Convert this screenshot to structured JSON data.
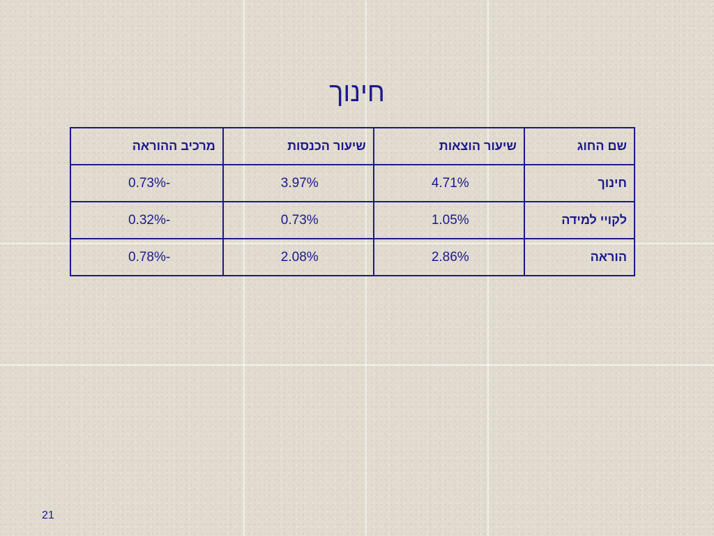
{
  "slide": {
    "title": "חינוך",
    "page_number": "21"
  },
  "table": {
    "headers": [
      "שם החוג",
      "שיעור הוצאות",
      "שיעור הכנסות",
      "מרכיב ההוראה"
    ],
    "rows": [
      [
        "חינוך",
        "4.71%",
        "3.97%",
        "-0.73%"
      ],
      [
        "לקויי למידה",
        "1.05%",
        "0.73%",
        "-0.32%"
      ],
      [
        "הוראה",
        "2.86%",
        "2.08%",
        "-0.78%"
      ]
    ]
  },
  "colors": {
    "text": "#1a1a8c",
    "background": "#e2dbd0"
  }
}
